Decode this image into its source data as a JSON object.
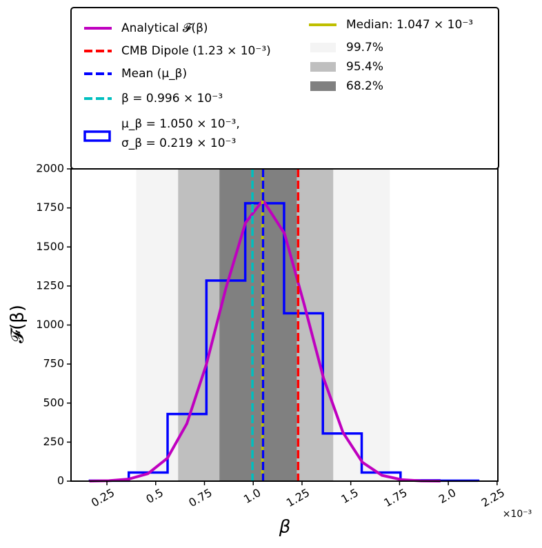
{
  "chart_data": {
    "type": "histogram",
    "xlabel": "β",
    "ylabel": "𝓕(β)",
    "x_offset_label": "×10⁻³",
    "xlim": [
      0.066,
      2.254
    ],
    "ylim": [
      0,
      2000
    ],
    "xticks": [
      0.25,
      0.5,
      0.75,
      {
        "value": 1,
        "label": "1.0"
      },
      1.25,
      1.5,
      1.75,
      {
        "value": 2,
        "label": "2.0"
      },
      2.25
    ],
    "yticks": [
      0,
      250,
      500,
      750,
      1000,
      1250,
      1500,
      1750,
      2000
    ],
    "bands": [
      {
        "name": "99.7%",
        "color": "#f4f4f4",
        "range": [
          0.4,
          1.7
        ]
      },
      {
        "name": "95.4%",
        "color": "#bfbfbf",
        "range": [
          0.615,
          1.41
        ]
      },
      {
        "name": "68.2%",
        "color": "#808080",
        "range": [
          0.827,
          1.223
        ]
      }
    ],
    "histogram": {
      "name": [
        "μ_β = 1.050 × 10⁻³,",
        "σ_β = 0.219 × 10⁻³"
      ],
      "color": "#0000ff",
      "bins": [
        0.163,
        0.362,
        0.561,
        0.76,
        0.959,
        1.158,
        1.357,
        1.556,
        1.755,
        1.954,
        2.153
      ],
      "counts": [
        3,
        55,
        430,
        1285,
        1780,
        1075,
        305,
        55,
        5,
        3
      ]
    },
    "curve": {
      "name": "Analytical 𝓕(β)",
      "color": "#bf00bf",
      "x": [
        0.16,
        0.26,
        0.36,
        0.46,
        0.56,
        0.66,
        0.76,
        0.86,
        0.96,
        1.05,
        1.16,
        1.26,
        1.36,
        1.46,
        1.56,
        1.66,
        1.76,
        1.86,
        1.96
      ],
      "y": [
        0.5,
        2.7,
        12.6,
        47.8,
        147,
        369,
        749,
        1236,
        1654,
        1800,
        1587,
        1137,
        661,
        312,
        120,
        37,
        9.4,
        1.9,
        0.3
      ]
    },
    "vlines": [
      {
        "name": "CMB Dipole (1.23 × 10⁻³)",
        "color": "#ff0000",
        "x": 1.23,
        "style": "dashed"
      },
      {
        "name": "Median: 1.047 × 10⁻³",
        "color": "#bfbf00",
        "x": 1.047,
        "style": "solid"
      },
      {
        "name": "Mean (μ_β)",
        "color": "#0000ff",
        "x": 1.05,
        "style": "dashed"
      },
      {
        "name": "β = 0.996 × 10⁻³",
        "color": "#00bfbf",
        "x": 0.996,
        "style": "dashed"
      }
    ]
  }
}
